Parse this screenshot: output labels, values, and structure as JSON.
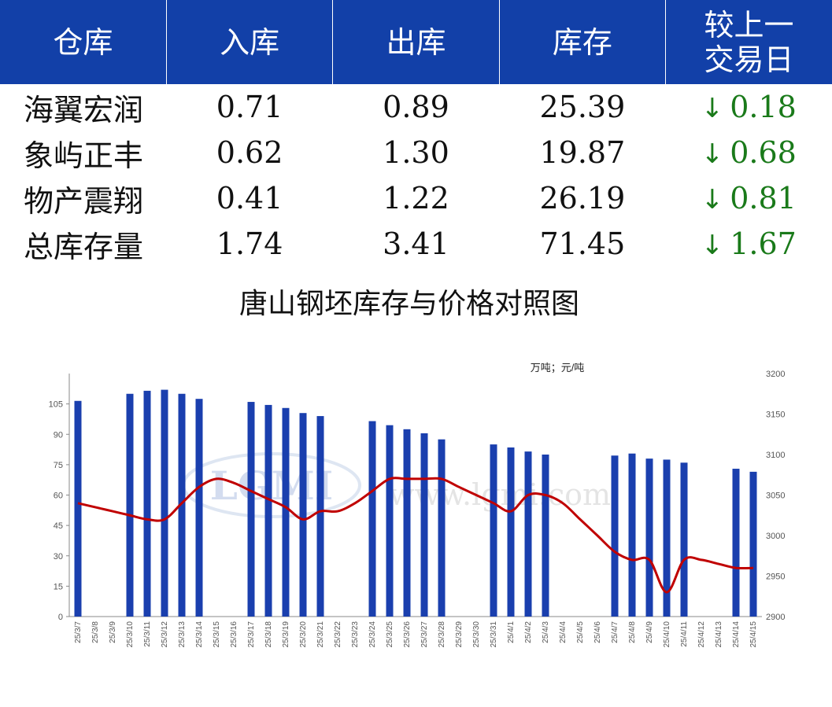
{
  "table": {
    "headers": [
      "仓库",
      "入库",
      "出库",
      "库存",
      "较上一交易日"
    ],
    "rows": [
      {
        "name": "海翼宏润",
        "in": "0.71",
        "out": "0.89",
        "stock": "25.39",
        "arrow": "↓",
        "change": "0.18"
      },
      {
        "name": "象屿正丰",
        "in": "0.62",
        "out": "1.30",
        "stock": "19.87",
        "arrow": "↓",
        "change": "0.68"
      },
      {
        "name": "物产震翔",
        "in": "0.41",
        "out": "1.22",
        "stock": "26.19",
        "arrow": "↓",
        "change": "0.81"
      },
      {
        "name": "总库存量",
        "in": "1.74",
        "out": "3.41",
        "stock": "71.45",
        "arrow": "↓",
        "change": "1.67"
      }
    ]
  },
  "colors": {
    "header_bg": "#1240a8",
    "bar": "#1a3fae",
    "line": "#c00000",
    "change_text": "#1a7a1a"
  },
  "watermark": {
    "logo": "LGMI",
    "url": "www.lgmi.com"
  },
  "chart_data": {
    "type": "bar",
    "title": "唐山钢坯库存与价格对照图",
    "units": "万吨；元/吨",
    "categories": [
      "25/3/7",
      "25/3/8",
      "25/3/9",
      "25/3/10",
      "25/3/11",
      "25/3/12",
      "25/3/13",
      "25/3/14",
      "25/3/15",
      "25/3/16",
      "25/3/17",
      "25/3/18",
      "25/3/19",
      "25/3/20",
      "25/3/21",
      "25/3/22",
      "25/3/23",
      "25/3/24",
      "25/3/25",
      "25/3/26",
      "25/3/27",
      "25/3/28",
      "25/3/29",
      "25/3/30",
      "25/3/31",
      "25/4/1",
      "25/4/2",
      "25/4/3",
      "25/4/4",
      "25/4/5",
      "25/4/6",
      "25/4/7",
      "25/4/8",
      "25/4/9",
      "25/4/10",
      "25/4/11",
      "25/4/12",
      "25/4/13",
      "25/4/14",
      "25/4/15"
    ],
    "series": [
      {
        "type": "bar",
        "axis": "left",
        "values": [
          106.5,
          null,
          null,
          110,
          111.5,
          112,
          110,
          107.5,
          null,
          null,
          106,
          104.5,
          103,
          100.5,
          99,
          null,
          null,
          96.5,
          94.5,
          92.5,
          90.5,
          87.5,
          null,
          null,
          85,
          83.5,
          81.5,
          80,
          null,
          null,
          null,
          79.5,
          80.5,
          78,
          77.5,
          76,
          null,
          null,
          73,
          71.5
        ]
      },
      {
        "type": "line",
        "axis": "right",
        "values": [
          3040,
          3035,
          3030,
          3025,
          3020,
          3020,
          3040,
          3060,
          3070,
          3065,
          3055,
          3045,
          3035,
          3020,
          3030,
          3030,
          3040,
          3055,
          3070,
          3070,
          3070,
          3070,
          3060,
          3050,
          3040,
          3030,
          3050,
          3050,
          3040,
          3020,
          3000,
          2980,
          2970,
          2970,
          2930,
          2970,
          2970,
          2965,
          2960,
          2960
        ]
      }
    ],
    "y_left": {
      "ticks": [
        0,
        15,
        30,
        45,
        60,
        75,
        90,
        105
      ],
      "range": [
        0,
        120
      ]
    },
    "y_right": {
      "ticks": [
        2900,
        2950,
        3000,
        3050,
        3100,
        3150,
        3200
      ],
      "range": [
        2900,
        3200
      ]
    }
  }
}
